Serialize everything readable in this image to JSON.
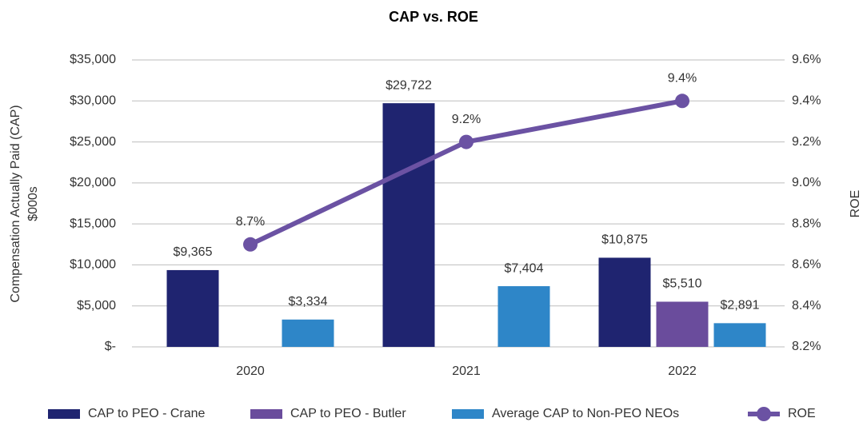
{
  "chart_data": {
    "type": "bar",
    "title": "CAP vs. ROE",
    "ylabel": [
      "Compensation Actually Paid (CAP)",
      "$000s"
    ],
    "y2label": "ROE",
    "categories": [
      "2020",
      "2021",
      "2022"
    ],
    "series": [
      {
        "name": "CAP to PEO - Crane",
        "type": "bar",
        "color": "#1f2470",
        "values": [
          9365,
          29722,
          10875
        ],
        "value_labels": [
          "$9,365",
          "$29,722",
          "$10,875"
        ]
      },
      {
        "name": "CAP to PEO - Butler",
        "type": "bar",
        "color": "#6a4c9c",
        "values": [
          null,
          null,
          5510
        ],
        "value_labels": [
          null,
          null,
          "$5,510"
        ]
      },
      {
        "name": "Average CAP to Non-PEO NEOs",
        "type": "bar",
        "color": "#2e86c8",
        "values": [
          3334,
          7404,
          2891
        ],
        "value_labels": [
          "$3,334",
          "$7,404",
          "$2,891"
        ]
      },
      {
        "name": "ROE",
        "type": "line",
        "axis": "y2",
        "color": "#6b52a3",
        "values": [
          8.7,
          9.2,
          9.4
        ],
        "value_labels": [
          "8.7%",
          "9.2%",
          "9.4%"
        ]
      }
    ],
    "ylim": [
      0,
      35000
    ],
    "yticks": [
      {
        "value": 0,
        "label": "$-"
      },
      {
        "value": 5000,
        "label": "$5,000"
      },
      {
        "value": 10000,
        "label": "$10,000"
      },
      {
        "value": 15000,
        "label": "$15,000"
      },
      {
        "value": 20000,
        "label": "$20,000"
      },
      {
        "value": 25000,
        "label": "$25,000"
      },
      {
        "value": 30000,
        "label": "$30,000"
      },
      {
        "value": 35000,
        "label": "$35,000"
      }
    ],
    "y2lim": [
      8.2,
      9.6
    ],
    "y2ticks": [
      {
        "value": 8.2,
        "label": "8.2%"
      },
      {
        "value": 8.4,
        "label": "8.4%"
      },
      {
        "value": 8.6,
        "label": "8.6%"
      },
      {
        "value": 8.8,
        "label": "8.8%"
      },
      {
        "value": 9.0,
        "label": "9.0%"
      },
      {
        "value": 9.2,
        "label": "9.2%"
      },
      {
        "value": 9.4,
        "label": "9.4%"
      },
      {
        "value": 9.6,
        "label": "9.6%"
      }
    ],
    "grid": true,
    "legend": "bottom"
  }
}
